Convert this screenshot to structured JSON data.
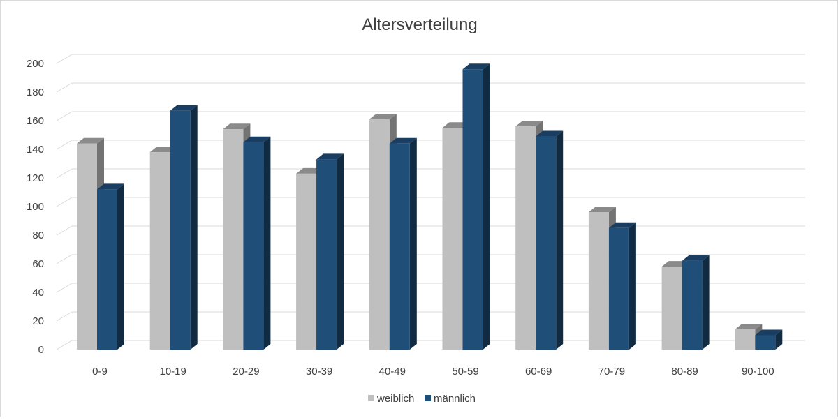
{
  "chart_data": {
    "type": "bar",
    "title": "Altersverteilung",
    "xlabel": "",
    "ylabel": "",
    "categories": [
      "0-9",
      "10-19",
      "20-29",
      "30-39",
      "40-49",
      "50-59",
      "60-69",
      "70-79",
      "80-89",
      "90-100"
    ],
    "series": [
      {
        "name": "weiblich",
        "values": [
          144,
          138,
          154,
          123,
          161,
          155,
          156,
          96,
          58,
          14
        ],
        "color": "#bfbfbf"
      },
      {
        "name": "männlich",
        "values": [
          112,
          167,
          145,
          133,
          144,
          196,
          149,
          85,
          62,
          10
        ],
        "color": "#1f4e79"
      }
    ],
    "ylim": [
      0,
      200
    ],
    "yticks": [
      0,
      20,
      40,
      60,
      80,
      100,
      120,
      140,
      160,
      180,
      200
    ],
    "grid": true,
    "legend_position": "bottom",
    "style": "3d-clustered-column"
  }
}
